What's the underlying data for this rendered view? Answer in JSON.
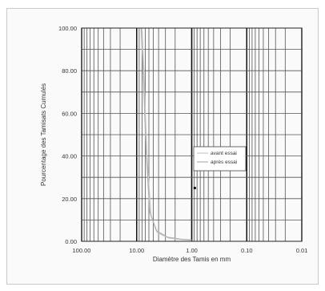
{
  "chart_data": {
    "type": "line",
    "xlabel": "Diamètre des Tamis en mm",
    "ylabel": "Pourcentage des Tamisats Cumulés",
    "x_scale": "log",
    "x_reversed": true,
    "xlim": [
      100,
      0.01
    ],
    "ylim": [
      0,
      100
    ],
    "x_ticks": [
      "100.00",
      "10.00",
      "1.00",
      "0.10",
      "0.01"
    ],
    "x_tick_values": [
      100,
      10,
      1,
      0.1,
      0.01
    ],
    "y_ticks": [
      "0.00",
      "20.00",
      "40.00",
      "60.00",
      "80.00",
      "100.00"
    ],
    "y_tick_values": [
      0,
      20,
      40,
      60,
      80,
      100
    ],
    "grid": true,
    "legend_position": "right-middle",
    "series": [
      {
        "name": "avant essai",
        "color": "#c8c8c8",
        "x": [
          8.0,
          7.4,
          6.5,
          5.5,
          4.2,
          2.6,
          1.5,
          1.0
        ],
        "y": [
          100,
          80,
          40,
          12,
          4,
          1.5,
          0.8,
          0.5
        ]
      },
      {
        "name": "après essai",
        "color": "#b0b0b0",
        "x": [
          8.3,
          7.7,
          6.8,
          5.8,
          4.4,
          2.8,
          1.6,
          1.0
        ],
        "y": [
          100,
          82,
          44,
          14,
          5,
          2,
          1,
          0.6
        ]
      }
    ],
    "annotations": [
      {
        "label": "point",
        "x": 0.88,
        "y": 25
      }
    ]
  }
}
